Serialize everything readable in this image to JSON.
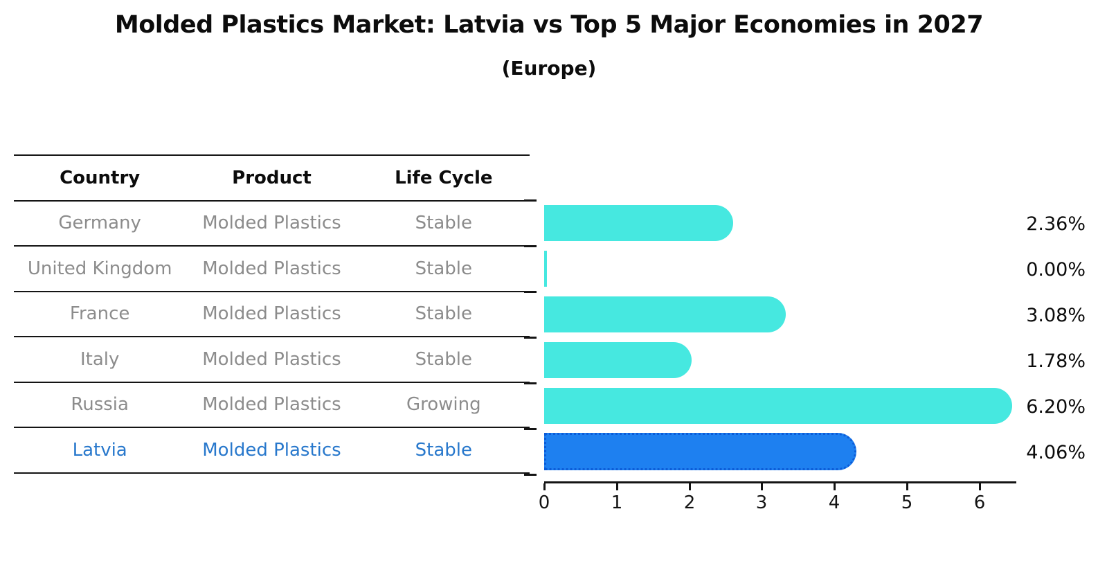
{
  "title": "Molded Plastics Market: Latvia vs Top 5 Major Economies in 2027",
  "subtitle": "(Europe)",
  "table": {
    "headers": [
      "Country",
      "Product",
      "Life Cycle"
    ],
    "rows": [
      {
        "country": "Germany",
        "product": "Molded Plastics",
        "life_cycle": "Stable",
        "highlight": false
      },
      {
        "country": "United Kingdom",
        "product": "Molded Plastics",
        "life_cycle": "Stable",
        "highlight": false
      },
      {
        "country": "France",
        "product": "Molded Plastics",
        "life_cycle": "Stable",
        "highlight": false
      },
      {
        "country": "Italy",
        "product": "Molded Plastics",
        "life_cycle": "Stable",
        "highlight": false
      },
      {
        "country": "Russia",
        "product": "Molded Plastics",
        "life_cycle": "Growing",
        "highlight": false
      },
      {
        "country": "Latvia",
        "product": "Molded Plastics",
        "life_cycle": "Stable",
        "highlight": true
      }
    ]
  },
  "chart_data": {
    "type": "bar",
    "orientation": "horizontal",
    "categories": [
      "Germany",
      "United Kingdom",
      "France",
      "Italy",
      "Russia",
      "Latvia"
    ],
    "values": [
      2.36,
      0.0,
      3.08,
      1.78,
      6.2,
      4.06
    ],
    "value_labels": [
      "2.36%",
      "0.00%",
      "3.08%",
      "1.78%",
      "6.20%",
      "4.06%"
    ],
    "unit": "%",
    "x_ticks": [
      "0",
      "1",
      "2",
      "3",
      "4",
      "5",
      "6"
    ],
    "xlim": [
      0,
      6.5
    ],
    "grid": false,
    "legend": false,
    "highlight_index": 5,
    "title": "Molded Plastics Market: Latvia vs Top 5 Major Economies in 2027",
    "subtitle": "(Europe)"
  },
  "colors": {
    "bar_default": "#46e8e0",
    "bar_highlight": "#1e80f0",
    "bar_highlight_border": "#0c5cd8",
    "highlight_text": "#2878cc",
    "body_text": "#8c8c8c",
    "line": "#141414"
  }
}
